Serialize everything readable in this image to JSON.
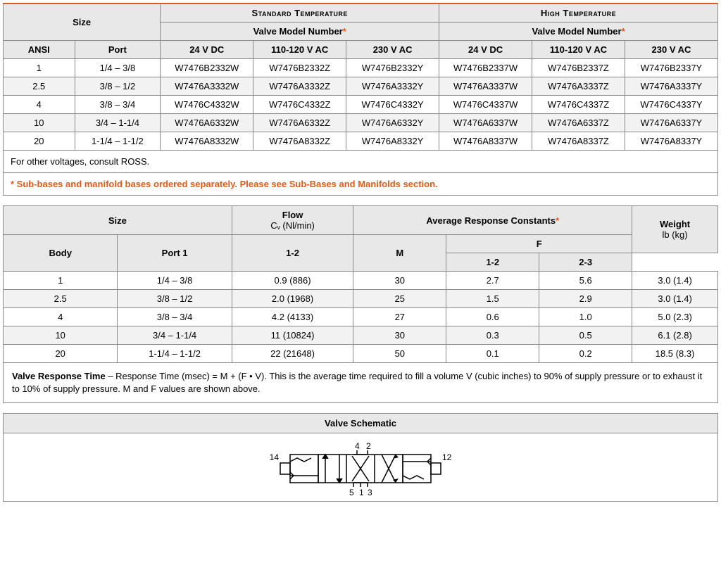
{
  "table1": {
    "groups": {
      "size": "Size",
      "std": "Standard Temperature",
      "high": "High Temperature"
    },
    "vmn": "Valve Model Number",
    "cols": {
      "ansi": "ANSI",
      "port": "Port",
      "v24": "24 V DC",
      "v110": "110-120 V AC",
      "v230": "230 V AC"
    },
    "rows": [
      {
        "ansi": "1",
        "port": "1/4 – 3/8",
        "std": [
          "W7476B2332W",
          "W7476B2332Z",
          "W7476B2332Y"
        ],
        "high": [
          "W7476B2337W",
          "W7476B2337Z",
          "W7476B2337Y"
        ]
      },
      {
        "ansi": "2.5",
        "port": "3/8 – 1/2",
        "std": [
          "W7476A3332W",
          "W7476A3332Z",
          "W7476A3332Y"
        ],
        "high": [
          "W7476A3337W",
          "W7476A3337Z",
          "W7476A3337Y"
        ]
      },
      {
        "ansi": "4",
        "port": "3/8 – 3/4",
        "std": [
          "W7476C4332W",
          "W7476C4332Z",
          "W7476C4332Y"
        ],
        "high": [
          "W7476C4337W",
          "W7476C4337Z",
          "W7476C4337Y"
        ]
      },
      {
        "ansi": "10",
        "port": "3/4 – 1-1/4",
        "std": [
          "W7476A6332W",
          "W7476A6332Z",
          "W7476A6332Y"
        ],
        "high": [
          "W7476A6337W",
          "W7476A6337Z",
          "W7476A6337Y"
        ]
      },
      {
        "ansi": "20",
        "port": "1-1/4 – 1-1/2",
        "std": [
          "W7476A8332W",
          "W7476A8332Z",
          "W7476A8332Y"
        ],
        "high": [
          "W7476A8337W",
          "W7476A8337Z",
          "W7476A8337Y"
        ]
      }
    ],
    "note1": "For other voltages, consult ROSS.",
    "note2": "Sub-bases and manifold bases ordered separately. Please see Sub-Bases and Manifolds section."
  },
  "table2": {
    "groups": {
      "size": "Size",
      "flow": "Flow",
      "flow_sub": "Cᵥ (Nl/min)",
      "arc": "Average Response Constants",
      "weight": "Weight",
      "weight_sub": "lb (kg)"
    },
    "cols": {
      "body": "Body",
      "port1": "Port 1",
      "c12": "1-2",
      "m": "M",
      "f": "F",
      "f12": "1-2",
      "f23": "2-3"
    },
    "rows": [
      {
        "body": "1",
        "port1": "1/4 – 3/8",
        "c12": "0.9 (886)",
        "m": "30",
        "f12": "2.7",
        "f23": "5.6",
        "w": "3.0 (1.4)"
      },
      {
        "body": "2.5",
        "port1": "3/8 – 1/2",
        "c12": "2.0 (1968)",
        "m": "25",
        "f12": "1.5",
        "f23": "2.9",
        "w": "3.0 (1.4)"
      },
      {
        "body": "4",
        "port1": "3/8 – 3/4",
        "c12": "4.2 (4133)",
        "m": "27",
        "f12": "0.6",
        "f23": "1.0",
        "w": "5.0 (2.3)"
      },
      {
        "body": "10",
        "port1": "3/4 – 1-1/4",
        "c12": "11 (10824)",
        "m": "30",
        "f12": "0.3",
        "f23": "0.5",
        "w": "6.1 (2.8)"
      },
      {
        "body": "20",
        "port1": "1-1/4 – 1-1/2",
        "c12": "22 (21648)",
        "m": "50",
        "f12": "0.1",
        "f23": "0.2",
        "w": "18.5 (8.3)"
      }
    ],
    "resp_label": "Valve Response Time",
    "resp_text": "  – Response Time (msec) = M + (F • V).  This is the average time required to fill a volume V (cubic inches) to 90% of supply pressure or to exhaust it to 10% of supply pressure.  M and F values are shown above."
  },
  "schematic": {
    "title": "Valve Schematic",
    "labels": {
      "l14": "14",
      "l12": "12",
      "t4": "4",
      "t2": "2",
      "b5": "5",
      "b1": "1",
      "b3": "3"
    }
  },
  "colors": {
    "accent": "#e05a1c",
    "header_bg": "#e8e8e8",
    "border": "#888888"
  }
}
